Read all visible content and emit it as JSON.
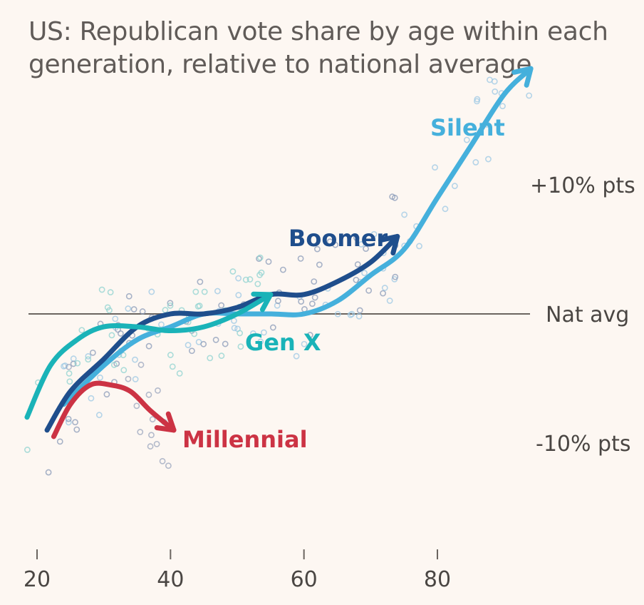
{
  "chart_data": {
    "type": "line",
    "title": "US: Republican vote share by age within each generation, relative to national average",
    "xlabel": "",
    "ylabel": "",
    "xlim": [
      18,
      96
    ],
    "ylim": [
      -18,
      21
    ],
    "x_ticks": [
      20,
      40,
      60,
      80
    ],
    "x_tick_labels": [
      "20",
      "40",
      "60",
      "80"
    ],
    "y_ticks": [
      10,
      0,
      -10
    ],
    "y_tick_labels": [
      "+10% pts",
      "Nat avg",
      "-10% pts"
    ],
    "grid": false,
    "legend": "direct labels on lines",
    "series": [
      {
        "name": "Silent",
        "color": "#45b0dc",
        "x": [
          24,
          30,
          35,
          40,
          45,
          50,
          55,
          60,
          65,
          70,
          75,
          80,
          85,
          90,
          94
        ],
        "y": [
          -7,
          -4,
          -2,
          -1,
          0,
          0,
          0,
          0,
          1,
          3,
          5,
          9,
          13,
          17,
          19
        ]
      },
      {
        "name": "Boomer",
        "color": "#1f4e8c",
        "x": [
          21.5,
          25,
          30,
          35,
          40,
          45,
          50,
          55,
          60,
          65,
          70,
          74
        ],
        "y": [
          -9,
          -6,
          -3.5,
          -1,
          0,
          0,
          0.5,
          1.5,
          1.5,
          2.5,
          4,
          6
        ]
      },
      {
        "name": "Gen X",
        "color": "#1ab3b8",
        "x": [
          18.5,
          22,
          26,
          30,
          35,
          40,
          45,
          50,
          55
        ],
        "y": [
          -8,
          -4,
          -2,
          -1,
          -1,
          -1.3,
          -1,
          0,
          1.5
        ]
      },
      {
        "name": "Millennial",
        "color": "#cc3344",
        "x": [
          22.5,
          25,
          28,
          31,
          34,
          37,
          40.5
        ],
        "y": [
          -9.5,
          -7,
          -5.5,
          -5.5,
          -6,
          -7.5,
          -9
        ]
      }
    ]
  }
}
